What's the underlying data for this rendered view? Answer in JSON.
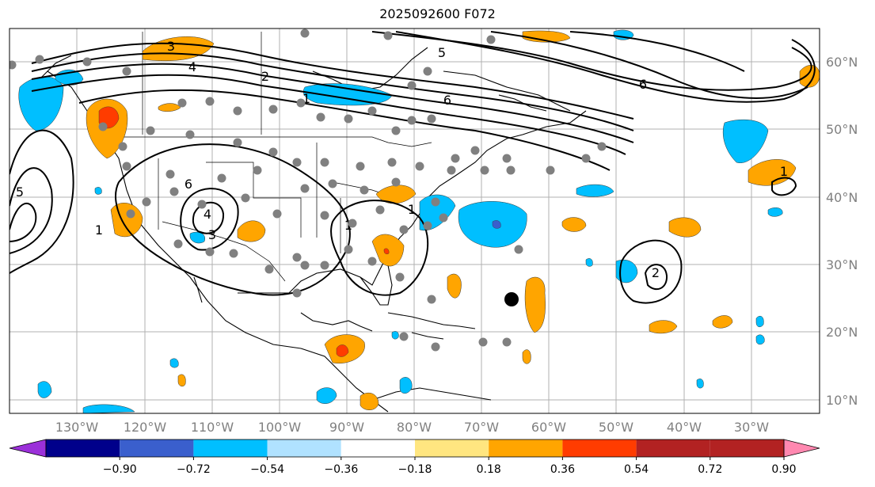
{
  "title": "2025092600 F072",
  "lon_labels": [
    "130°W",
    "120°W",
    "110°W",
    "100°W",
    "90°W",
    "80°W",
    "70°W",
    "60°W",
    "50°W",
    "40°W",
    "30°W"
  ],
  "lat_labels": [
    "60°N",
    "50°N",
    "40°N",
    "30°N",
    "20°N",
    "10°N"
  ],
  "colorbar": {
    "ticks": [
      "−0.90",
      "−0.72",
      "−0.54",
      "−0.36",
      "−0.18",
      "0.18",
      "0.36",
      "0.54",
      "0.72",
      "0.90"
    ],
    "colors": [
      "#9b30d9",
      "#00008b",
      "#3a5fcd",
      "#00bfff",
      "#b0e2ff",
      "#ffffff",
      "#ffe680",
      "#ffa500",
      "#ff3c00",
      "#b22222",
      "#ff88b0"
    ]
  },
  "contour_labels": [
    "3",
    "4",
    "2",
    "1",
    "6",
    "5",
    "6",
    "1",
    "5",
    "4",
    "3",
    "1",
    "1",
    "2",
    "1",
    "6"
  ],
  "marker": "black-dot",
  "styles": {
    "positive_fill": "#ffa500",
    "negative_fill": "#00bfff",
    "station_color": "#808080",
    "contour_color": "#000000",
    "grid_color": "#b0b0b0"
  }
}
